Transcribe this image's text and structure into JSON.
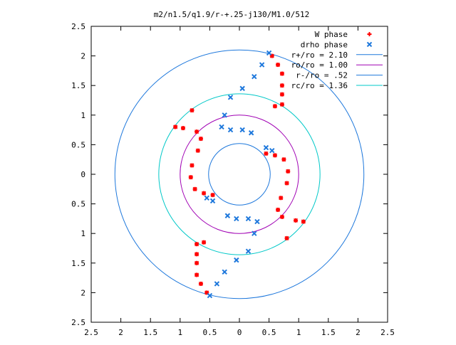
{
  "chart_data": {
    "type": "scatter",
    "title": "m2/n1.5/q1.9/r-+.25-j130/M1.0/512",
    "xlim": [
      -2.5,
      2.5
    ],
    "ylim": [
      -2.5,
      2.5
    ],
    "x_ticks": [
      -2.5,
      -2,
      -1.5,
      -1,
      -0.5,
      0,
      0.5,
      1,
      1.5,
      2,
      2.5
    ],
    "x_tick_labels": [
      "2.5",
      "2",
      "1.5",
      "1",
      "0.5",
      "0",
      "0.5",
      "1",
      "1.5",
      "2",
      "2.5"
    ],
    "y_ticks": [
      2.5,
      2,
      1.5,
      1,
      0.5,
      0,
      -0.5,
      -1,
      -1.5,
      -2,
      -2.5
    ],
    "y_tick_labels": [
      "2.5",
      "2",
      "1.5",
      "1",
      "0.5",
      "0",
      "0.5",
      "1",
      "1.5",
      "2",
      "2.5"
    ],
    "grid": false,
    "legend_position": "top-right",
    "series": [
      {
        "name": "W phase",
        "marker": "plus-star",
        "color": "#ff0000",
        "points": [
          [
            -0.8,
            1.08
          ],
          [
            -1.08,
            0.8
          ],
          [
            -0.95,
            0.78
          ],
          [
            -0.72,
            0.72
          ],
          [
            -0.65,
            0.6
          ],
          [
            -0.7,
            0.4
          ],
          [
            -0.8,
            0.15
          ],
          [
            -0.82,
            -0.05
          ],
          [
            -0.75,
            -0.25
          ],
          [
            -0.6,
            -0.32
          ],
          [
            -0.45,
            -0.35
          ],
          [
            0.8,
            -1.08
          ],
          [
            1.08,
            -0.8
          ],
          [
            0.95,
            -0.78
          ],
          [
            0.72,
            -0.72
          ],
          [
            0.65,
            -0.6
          ],
          [
            0.7,
            -0.4
          ],
          [
            0.8,
            -0.15
          ],
          [
            0.82,
            0.05
          ],
          [
            0.75,
            0.25
          ],
          [
            0.6,
            0.32
          ],
          [
            0.45,
            0.35
          ],
          [
            0.55,
            2.0
          ],
          [
            0.65,
            1.85
          ],
          [
            0.72,
            1.7
          ],
          [
            0.72,
            1.5
          ],
          [
            0.72,
            1.35
          ],
          [
            0.72,
            1.18
          ],
          [
            0.6,
            1.15
          ],
          [
            -0.55,
            -2.0
          ],
          [
            -0.65,
            -1.85
          ],
          [
            -0.72,
            -1.7
          ],
          [
            -0.72,
            -1.5
          ],
          [
            -0.72,
            -1.35
          ],
          [
            -0.72,
            -1.18
          ],
          [
            -0.6,
            -1.15
          ]
        ]
      },
      {
        "name": "drho phase",
        "marker": "cross",
        "color": "#1e78dc",
        "points": [
          [
            0.5,
            2.05
          ],
          [
            0.38,
            1.85
          ],
          [
            0.25,
            1.65
          ],
          [
            0.05,
            1.45
          ],
          [
            -0.15,
            1.3
          ],
          [
            -0.25,
            1.0
          ],
          [
            -0.3,
            0.8
          ],
          [
            -0.15,
            0.75
          ],
          [
            0.05,
            0.75
          ],
          [
            0.2,
            0.7
          ],
          [
            0.45,
            0.45
          ],
          [
            0.55,
            0.4
          ],
          [
            -0.5,
            -2.05
          ],
          [
            -0.38,
            -1.85
          ],
          [
            -0.25,
            -1.65
          ],
          [
            -0.05,
            -1.45
          ],
          [
            0.15,
            -1.3
          ],
          [
            0.25,
            -1.0
          ],
          [
            0.3,
            -0.8
          ],
          [
            0.15,
            -0.75
          ],
          [
            -0.05,
            -0.75
          ],
          [
            -0.2,
            -0.7
          ],
          [
            -0.45,
            -0.45
          ],
          [
            -0.55,
            -0.4
          ]
        ]
      },
      {
        "name": "r+/ro = 2.10",
        "type": "circle",
        "radius": 2.1,
        "color": "#1e78dc"
      },
      {
        "name": "ro/ro = 1.00",
        "type": "circle",
        "radius": 1.0,
        "color": "#a000b4"
      },
      {
        "name": "r-/ro = .52",
        "type": "circle",
        "radius": 0.52,
        "color": "#1e78dc"
      },
      {
        "name": "rc/ro = 1.36",
        "type": "circle",
        "radius": 1.36,
        "color": "#00c8c8"
      }
    ]
  }
}
